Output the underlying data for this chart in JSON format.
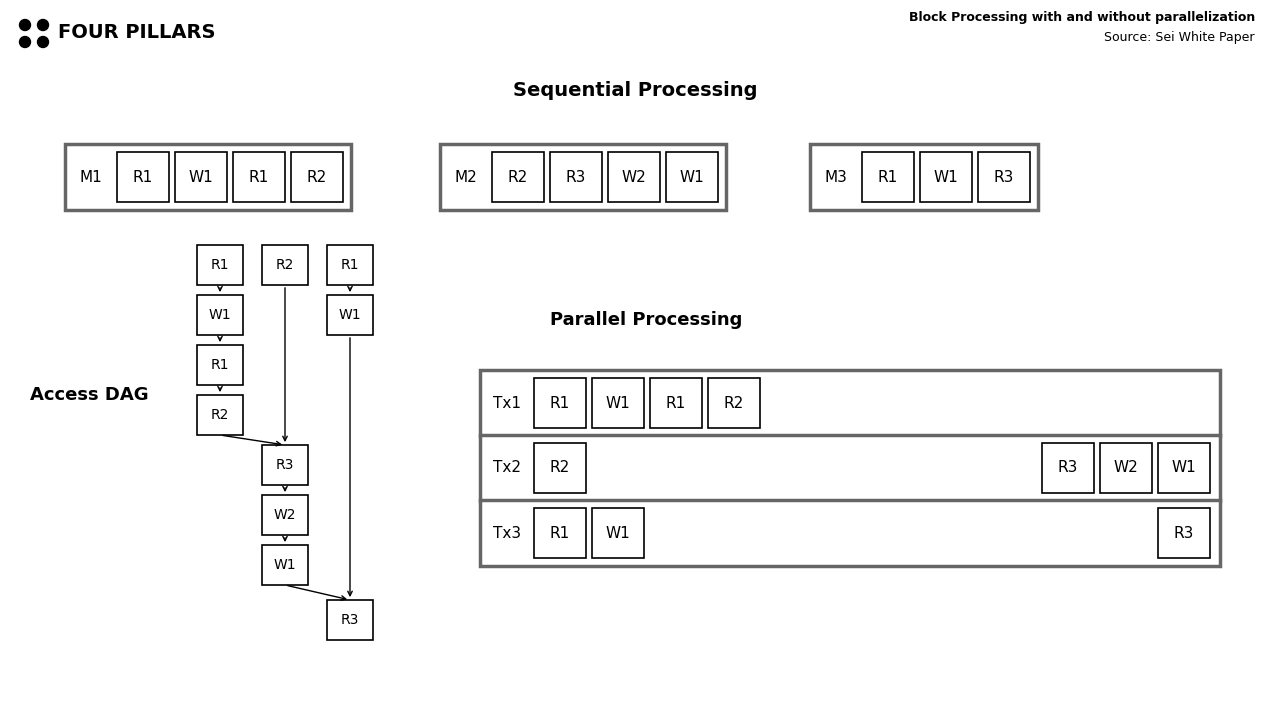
{
  "bg_color": "#ffffff",
  "title_main": "Block Processing with and without parallelization",
  "title_sub": "Source: Sei White Paper",
  "logo_text": "FOUR PILLARS",
  "section1_title": "Sequential Processing",
  "section2_title": "Parallel Processing",
  "section3_title": "Access DAG",
  "seq_rows": [
    [
      "M1",
      "R1",
      "W1",
      "R1",
      "R2"
    ],
    [
      "M2",
      "R2",
      "R3",
      "W2",
      "W1"
    ],
    [
      "M3",
      "R1",
      "W1",
      "R3"
    ]
  ],
  "parallel_rows": [
    [
      "Tx1",
      "R1",
      "W1",
      "R1",
      "R2"
    ],
    [
      "Tx2",
      "R2",
      "R3",
      "W2",
      "W1"
    ],
    [
      "Tx3",
      "R1",
      "W1",
      "R3"
    ]
  ]
}
